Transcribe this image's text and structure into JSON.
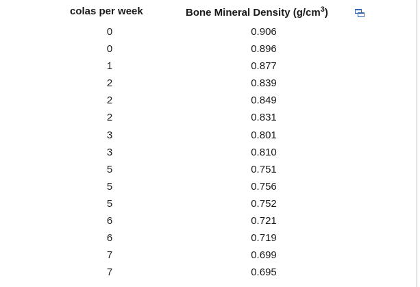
{
  "table": {
    "headers": {
      "colas": "colas per week",
      "bmd_prefix": "Bone Mineral Density (g/cm",
      "bmd_sup": "3",
      "bmd_suffix": ")"
    },
    "rows": [
      {
        "colas": "0",
        "bmd": "0.906"
      },
      {
        "colas": "0",
        "bmd": "0.896"
      },
      {
        "colas": "1",
        "bmd": "0.877"
      },
      {
        "colas": "2",
        "bmd": "0.839"
      },
      {
        "colas": "2",
        "bmd": "0.849"
      },
      {
        "colas": "2",
        "bmd": "0.831"
      },
      {
        "colas": "3",
        "bmd": "0.801"
      },
      {
        "colas": "3",
        "bmd": "0.810"
      },
      {
        "colas": "5",
        "bmd": "0.751"
      },
      {
        "colas": "5",
        "bmd": "0.756"
      },
      {
        "colas": "5",
        "bmd": "0.752"
      },
      {
        "colas": "6",
        "bmd": "0.721"
      },
      {
        "colas": "6",
        "bmd": "0.719"
      },
      {
        "colas": "7",
        "bmd": "0.699"
      },
      {
        "colas": "7",
        "bmd": "0.695"
      }
    ]
  },
  "icons": {
    "popout": "open-in-new-window-icon"
  },
  "colors": {
    "icon_blue": "#3b66b0",
    "text": "#1a1a1a"
  }
}
